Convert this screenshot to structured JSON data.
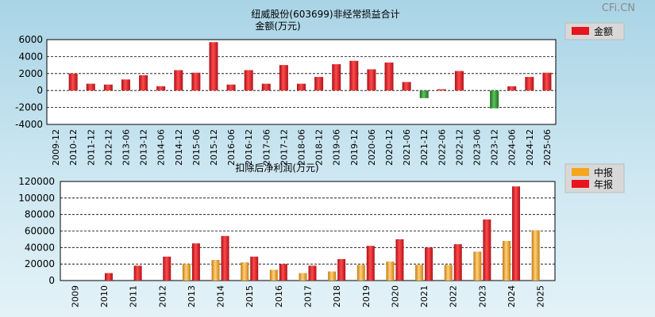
{
  "watermark": "CFi.CN",
  "chart_data": [
    {
      "type": "bar",
      "title": "纽威股份(603699)非经常损益合计",
      "subtitle": "金额(万元)",
      "categories": [
        "2009-12",
        "2010-12",
        "2011-12",
        "2012-12",
        "2013-06",
        "2013-12",
        "2014-06",
        "2014-12",
        "2015-06",
        "2015-12",
        "2016-06",
        "2016-12",
        "2017-06",
        "2017-12",
        "2018-06",
        "2018-12",
        "2019-06",
        "2019-12",
        "2020-06",
        "2020-12",
        "2021-06",
        "2021-12",
        "2022-06",
        "2022-12",
        "2023-06",
        "2023-12",
        "2024-06",
        "2024-12",
        "2025-06"
      ],
      "series": [
        {
          "name": "金额",
          "color": "#e8141e",
          "values": [
            0,
            2000,
            800,
            700,
            1300,
            1800,
            500,
            2400,
            2100,
            5700,
            700,
            2400,
            800,
            3000,
            800,
            1600,
            3100,
            3500,
            2500,
            3300,
            1000,
            -900,
            150,
            2300,
            0,
            -2100,
            500,
            1600,
            2100
          ]
        }
      ],
      "ylim": [
        -4000,
        6000
      ],
      "yticks": [
        6000,
        4000,
        2000,
        0,
        -2000,
        -4000
      ],
      "negative_color": "#2f8f2f",
      "legend": "top-right"
    },
    {
      "type": "bar",
      "title": "扣除后净利润(万元)",
      "categories": [
        "2009",
        "2010",
        "2011",
        "2012",
        "2013",
        "2014",
        "2015",
        "2016",
        "2017",
        "2018",
        "2019",
        "2020",
        "2021",
        "2022",
        "2023",
        "2024",
        "2025"
      ],
      "series": [
        {
          "name": "中报",
          "color": "#f5a51e",
          "values": [
            0,
            0,
            0,
            0,
            20000,
            25000,
            22000,
            13000,
            9000,
            11000,
            19000,
            23000,
            19000,
            19000,
            35000,
            48000,
            61000
          ]
        },
        {
          "name": "年报",
          "color": "#e8141e",
          "values": [
            0,
            9000,
            18000,
            29000,
            45000,
            54000,
            29000,
            20000,
            18000,
            26000,
            42000,
            50000,
            40000,
            44000,
            74000,
            114000,
            null
          ]
        }
      ],
      "ylim": [
        0,
        120000
      ],
      "yticks": [
        120000,
        100000,
        80000,
        60000,
        40000,
        20000,
        0
      ],
      "legend": "top-right"
    }
  ]
}
